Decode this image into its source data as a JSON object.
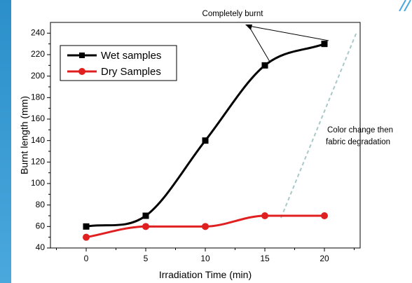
{
  "chart_data": {
    "type": "line",
    "x": [
      0,
      5,
      10,
      15,
      20
    ],
    "series": [
      {
        "name": "Wet samples",
        "values": [
          60,
          70,
          140,
          210,
          230
        ],
        "color": "#000000",
        "marker": "square"
      },
      {
        "name": "Dry Samples",
        "values": [
          50,
          60,
          60,
          70,
          70
        ],
        "color": "#e02020",
        "marker": "circle"
      }
    ],
    "xlabel": "Irradiation Time (min)",
    "ylabel": "Burnt length (mm)",
    "xlim": [
      -3,
      23
    ],
    "ylim": [
      40,
      250
    ],
    "xticks": [
      "0",
      "5",
      "10",
      "15",
      "20"
    ],
    "yticks": [
      "40",
      "60",
      "80",
      "100",
      "120",
      "140",
      "160",
      "180",
      "200",
      "220",
      "240"
    ],
    "grid": false,
    "legend": "top-left",
    "annotations": [
      {
        "text": "Completely burnt"
      },
      {
        "lines": [
          "Color change then",
          "fabric degradation"
        ]
      }
    ]
  }
}
